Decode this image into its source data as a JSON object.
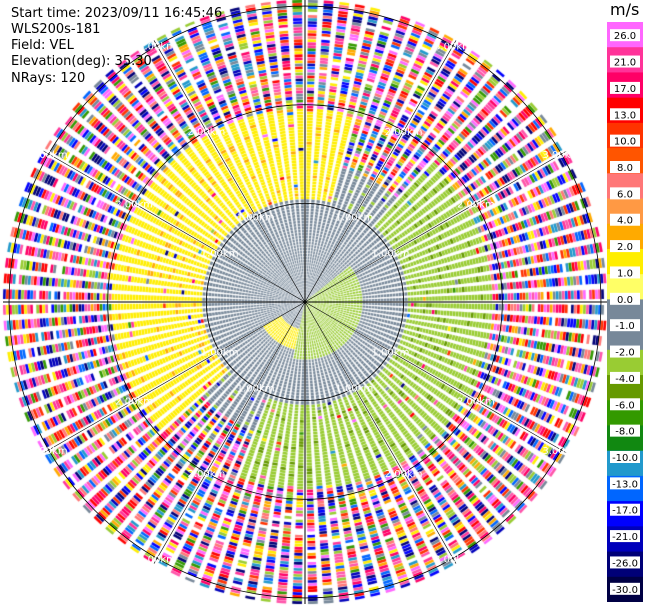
{
  "header": {
    "start_time": "Start time: 2023/09/11 16:45:46",
    "instrument": "WLS200s-181",
    "field": "Field: VEL",
    "elevation": "Elevation(deg): 35.30",
    "nrays": "NRays: 120"
  },
  "chart_data": {
    "type": "ppi-polar-heatmap",
    "field": "VEL",
    "units": "m/s",
    "nrays": 120,
    "range_rings_km": [
      1.0,
      2.0,
      3.0
    ],
    "ring_labels": [
      "1.00km",
      "2.00km",
      "3.00km"
    ],
    "radial_spokes_deg": [
      0,
      30,
      60,
      90,
      120,
      150,
      180,
      210,
      240,
      270,
      300,
      330
    ],
    "colorbar": {
      "label": "m/s",
      "ticks": [
        "26.0",
        "21.0",
        "17.0",
        "13.0",
        "10.0",
        "8.0",
        "6.0",
        "4.0",
        "2.0",
        "1.0",
        "0.0",
        "-1.0",
        "-2.0",
        "-4.0",
        "-6.0",
        "-8.0",
        "-10.0",
        "-13.0",
        "-17.0",
        "-21.0",
        "-26.0",
        "-30.0"
      ],
      "colors": [
        "#ff66ff",
        "#ff3399",
        "#ff0066",
        "#ff0000",
        "#ff3300",
        "#ff5500",
        "#ff7777",
        "#ff9944",
        "#ffaa00",
        "#ffee00",
        "#ffff66",
        "#778899",
        "#778899",
        "#99cc33",
        "#669900",
        "#339900",
        "#118811",
        "#2299cc",
        "#0066ff",
        "#0000ff",
        "#0000bb",
        "#000077",
        "#000044"
      ]
    },
    "pattern": {
      "inner_gray_radius_km": 1.0,
      "yellow_sector_center_deg": 300,
      "green_sector_center_deg": 120,
      "noise_start_km": 2.1,
      "max_range_km": 3.0
    }
  }
}
